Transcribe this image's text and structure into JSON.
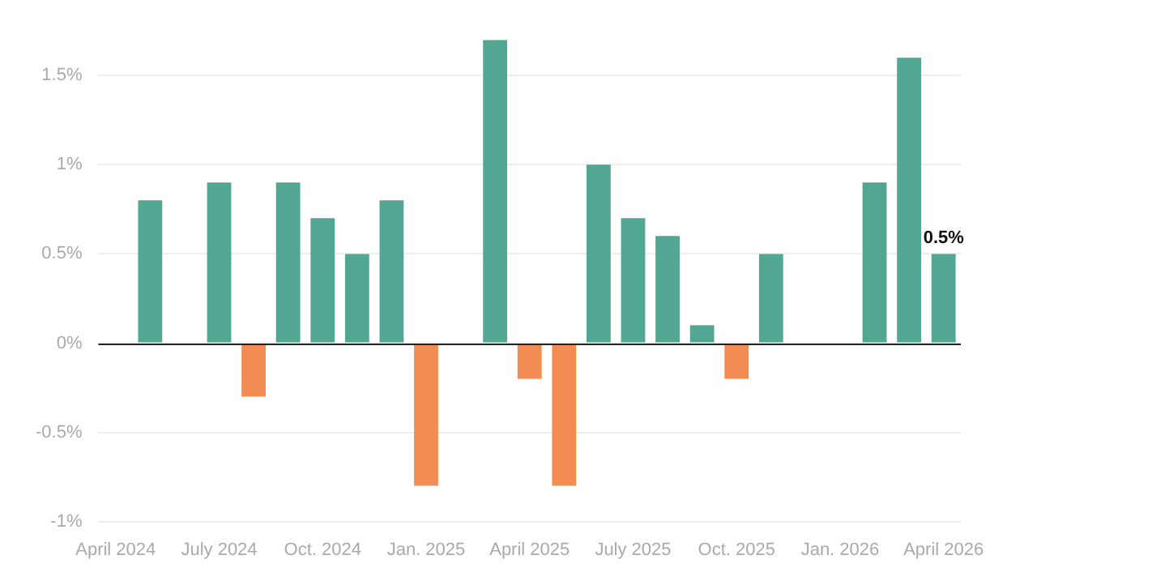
{
  "chart_data": {
    "type": "bar",
    "categories": [
      "April 2024",
      null,
      null,
      "July 2024",
      null,
      null,
      "Oct. 2024",
      null,
      null,
      "Jan. 2025",
      null,
      null,
      "April 2025",
      null,
      null,
      "July 2025",
      null,
      null,
      "Oct. 2025",
      null,
      null,
      "Jan. 2026",
      null,
      null,
      "April 2026"
    ],
    "values": [
      null,
      0.8,
      null,
      0.9,
      -0.3,
      0.9,
      0.7,
      0.5,
      0.8,
      -0.8,
      null,
      1.7,
      -0.2,
      -0.8,
      1.0,
      0.7,
      0.6,
      0.1,
      -0.2,
      0.5,
      null,
      null,
      0.9,
      1.6,
      0.5
    ],
    "colors": [
      "#52a793",
      "#52a793",
      "#52a793",
      "#52a793",
      "#f28c52",
      "#52a793",
      "#52a793",
      "#52a793",
      "#52a793",
      "#f28c52",
      "#52a793",
      "#52a793",
      "#f28c52",
      "#f28c52",
      "#52a793",
      "#52a793",
      "#52a793",
      "#52a793",
      "#f28c52",
      "#52a793",
      "#52a793",
      "#52a793",
      "#52a793",
      "#52a793",
      "#52a793"
    ],
    "value_labels": [
      null,
      null,
      null,
      null,
      null,
      null,
      null,
      null,
      null,
      null,
      null,
      null,
      null,
      null,
      null,
      null,
      null,
      null,
      null,
      null,
      null,
      null,
      null,
      null,
      "0.5%"
    ],
    "ylim": [
      -1,
      1.7
    ],
    "yticks": [
      {
        "value": -1,
        "label": "-1%"
      },
      {
        "value": -0.5,
        "label": "-0.5%"
      },
      {
        "value": 0,
        "label": "0%"
      },
      {
        "value": 0.5,
        "label": "0.5%"
      },
      {
        "value": 1,
        "label": "1%"
      },
      {
        "value": 1.5,
        "label": "1.5%"
      }
    ],
    "grid": "y",
    "legend": false
  }
}
